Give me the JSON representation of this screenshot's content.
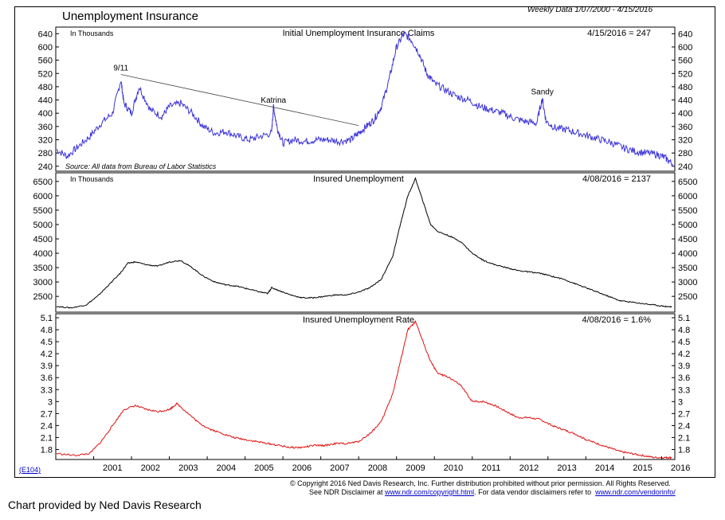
{
  "header": {
    "title": "Unemployment Insurance",
    "date_range": "Weekly Data 1/07/2000 - 4/15/2016"
  },
  "footer": {
    "code": "(E104)",
    "copyright": "© Copyright 2016 Ned Davis Research, Inc.  Further distribution prohibited without prior permission.  All Rights Reserved.",
    "disclaimer_prefix": "See NDR Disclaimer at",
    "disclaimer_link": "www.ndr.com/copyright.html",
    "vendor_prefix": ". For data vendor disclaimers refer to",
    "vendor_link": "www.ndr.com/vendorinfo/",
    "provided_by": "Chart provided by Ned Davis Research"
  },
  "colors": {
    "claims": "#3b33d6",
    "insured": "#000000",
    "rate": "#e01010"
  },
  "chart_data": [
    {
      "type": "line",
      "title": "Initial Unemployment Insurance Claims",
      "units_label": "In Thousands",
      "last_value": "4/15/2016 = 247",
      "source": "Source: All data from Bureau of Labor Statistics",
      "yticks": [
        640,
        600,
        560,
        520,
        480,
        440,
        400,
        360,
        320,
        280,
        240
      ],
      "ylim": [
        225,
        660
      ],
      "annotations": [
        {
          "label": "9/11",
          "x": 2001.72,
          "y": 517
        },
        {
          "label": "Katrina",
          "x": 2005.75,
          "y": 420
        },
        {
          "label": "Sandy",
          "x": 2012.85,
          "y": 445
        }
      ],
      "trendline": [
        [
          2001.72,
          517
        ],
        [
          2008.0,
          363
        ]
      ],
      "series": [
        {
          "x": [
            2000.02,
            2000.3,
            2000.6,
            2000.9,
            2001.2,
            2001.5,
            2001.72,
            2001.8,
            2002.0,
            2002.2,
            2002.5,
            2002.8,
            2003.0,
            2003.3,
            2003.6,
            2003.9,
            2004.2,
            2004.5,
            2004.8,
            2005.1,
            2005.4,
            2005.7,
            2005.75,
            2005.85,
            2006.0,
            2006.3,
            2006.6,
            2006.9,
            2007.2,
            2007.5,
            2007.8,
            2008.0,
            2008.2,
            2008.4,
            2008.6,
            2008.8,
            2009.0,
            2009.2,
            2009.4,
            2009.6,
            2009.8,
            2010.0,
            2010.3,
            2010.6,
            2010.9,
            2011.2,
            2011.5,
            2011.8,
            2012.1,
            2012.4,
            2012.7,
            2012.85,
            2012.95,
            2013.2,
            2013.5,
            2013.8,
            2014.1,
            2014.4,
            2014.7,
            2015.0,
            2015.3,
            2015.6,
            2015.9,
            2016.1,
            2016.29
          ],
          "y": [
            290,
            270,
            300,
            330,
            370,
            400,
            500,
            430,
            400,
            480,
            410,
            390,
            420,
            430,
            400,
            360,
            340,
            345,
            330,
            320,
            330,
            340,
            420,
            355,
            310,
            320,
            315,
            320,
            320,
            315,
            320,
            340,
            360,
            380,
            420,
            500,
            600,
            640,
            620,
            580,
            520,
            490,
            470,
            450,
            440,
            420,
            410,
            400,
            385,
            375,
            370,
            445,
            375,
            355,
            350,
            340,
            330,
            320,
            310,
            295,
            285,
            280,
            275,
            265,
            247
          ]
        }
      ]
    },
    {
      "type": "line",
      "title": "Insured Unemployment",
      "units_label": "In Thousands",
      "last_value": "4/08/2016 = 2137",
      "yticks": [
        6500,
        6000,
        5500,
        5000,
        4500,
        4000,
        3500,
        3000,
        2500
      ],
      "ylim": [
        1950,
        6800
      ],
      "series": [
        {
          "x": [
            2000.02,
            2000.4,
            2000.8,
            2001.1,
            2001.4,
            2001.7,
            2001.9,
            2002.1,
            2002.4,
            2002.7,
            2003.0,
            2003.3,
            2003.6,
            2003.9,
            2004.2,
            2004.5,
            2004.8,
            2005.1,
            2005.4,
            2005.6,
            2005.7,
            2005.9,
            2006.2,
            2006.5,
            2006.8,
            2007.1,
            2007.4,
            2007.7,
            2008.0,
            2008.3,
            2008.6,
            2008.9,
            2009.1,
            2009.3,
            2009.5,
            2009.7,
            2009.9,
            2010.1,
            2010.4,
            2010.7,
            2011.0,
            2011.3,
            2011.6,
            2011.9,
            2012.2,
            2012.5,
            2012.8,
            2013.1,
            2013.4,
            2013.7,
            2014.0,
            2014.3,
            2014.6,
            2014.9,
            2015.2,
            2015.5,
            2015.8,
            2016.1,
            2016.27
          ],
          "y": [
            2150,
            2100,
            2200,
            2500,
            2900,
            3300,
            3650,
            3700,
            3600,
            3550,
            3700,
            3750,
            3500,
            3200,
            3000,
            2900,
            2850,
            2750,
            2650,
            2600,
            2800,
            2700,
            2550,
            2450,
            2450,
            2500,
            2550,
            2550,
            2650,
            2800,
            3100,
            3900,
            5000,
            6000,
            6600,
            5800,
            5000,
            4750,
            4600,
            4400,
            4000,
            3750,
            3600,
            3500,
            3400,
            3350,
            3300,
            3200,
            3100,
            2950,
            2800,
            2650,
            2500,
            2350,
            2300,
            2250,
            2200,
            2150,
            2137
          ]
        }
      ]
    },
    {
      "type": "line",
      "title": "Insured Unemployment Rate",
      "last_value": "4/08/2016 = 1.6%",
      "yticks": [
        5.1,
        4.8,
        4.5,
        4.2,
        3.9,
        3.6,
        3.3,
        3.0,
        2.7,
        2.4,
        2.1,
        1.8
      ],
      "ylim": [
        1.55,
        5.2
      ],
      "xticks": [
        "2001",
        "2002",
        "2003",
        "2004",
        "2005",
        "2006",
        "2007",
        "2008",
        "2009",
        "2010",
        "2011",
        "2012",
        "2013",
        "2014",
        "2015",
        "2016"
      ],
      "xlim": [
        2000.0,
        2016.35
      ],
      "series": [
        {
          "x": [
            2000.02,
            2000.5,
            2000.9,
            2001.2,
            2001.5,
            2001.8,
            2002.1,
            2002.4,
            2002.7,
            2003.0,
            2003.2,
            2003.5,
            2003.8,
            2004.1,
            2004.4,
            2004.7,
            2005.0,
            2005.3,
            2005.6,
            2005.9,
            2006.2,
            2006.5,
            2006.8,
            2007.1,
            2007.4,
            2007.7,
            2008.0,
            2008.3,
            2008.6,
            2008.9,
            2009.1,
            2009.3,
            2009.5,
            2009.7,
            2009.9,
            2010.1,
            2010.4,
            2010.7,
            2011.0,
            2011.3,
            2011.6,
            2011.9,
            2012.2,
            2012.5,
            2012.8,
            2013.1,
            2013.4,
            2013.7,
            2014.0,
            2014.3,
            2014.6,
            2014.9,
            2015.2,
            2015.5,
            2015.8,
            2016.1,
            2016.27
          ],
          "y": [
            1.7,
            1.65,
            1.7,
            2.0,
            2.4,
            2.8,
            2.9,
            2.8,
            2.75,
            2.8,
            2.95,
            2.7,
            2.45,
            2.3,
            2.2,
            2.1,
            2.05,
            2.0,
            1.95,
            1.9,
            1.85,
            1.85,
            1.9,
            1.9,
            1.95,
            1.95,
            2.0,
            2.2,
            2.5,
            3.2,
            4.0,
            4.8,
            5.0,
            4.5,
            4.0,
            3.7,
            3.6,
            3.4,
            3.0,
            3.0,
            2.9,
            2.75,
            2.6,
            2.6,
            2.55,
            2.4,
            2.3,
            2.2,
            2.05,
            1.95,
            1.85,
            1.75,
            1.7,
            1.65,
            1.6,
            1.6,
            1.6
          ]
        }
      ]
    }
  ]
}
